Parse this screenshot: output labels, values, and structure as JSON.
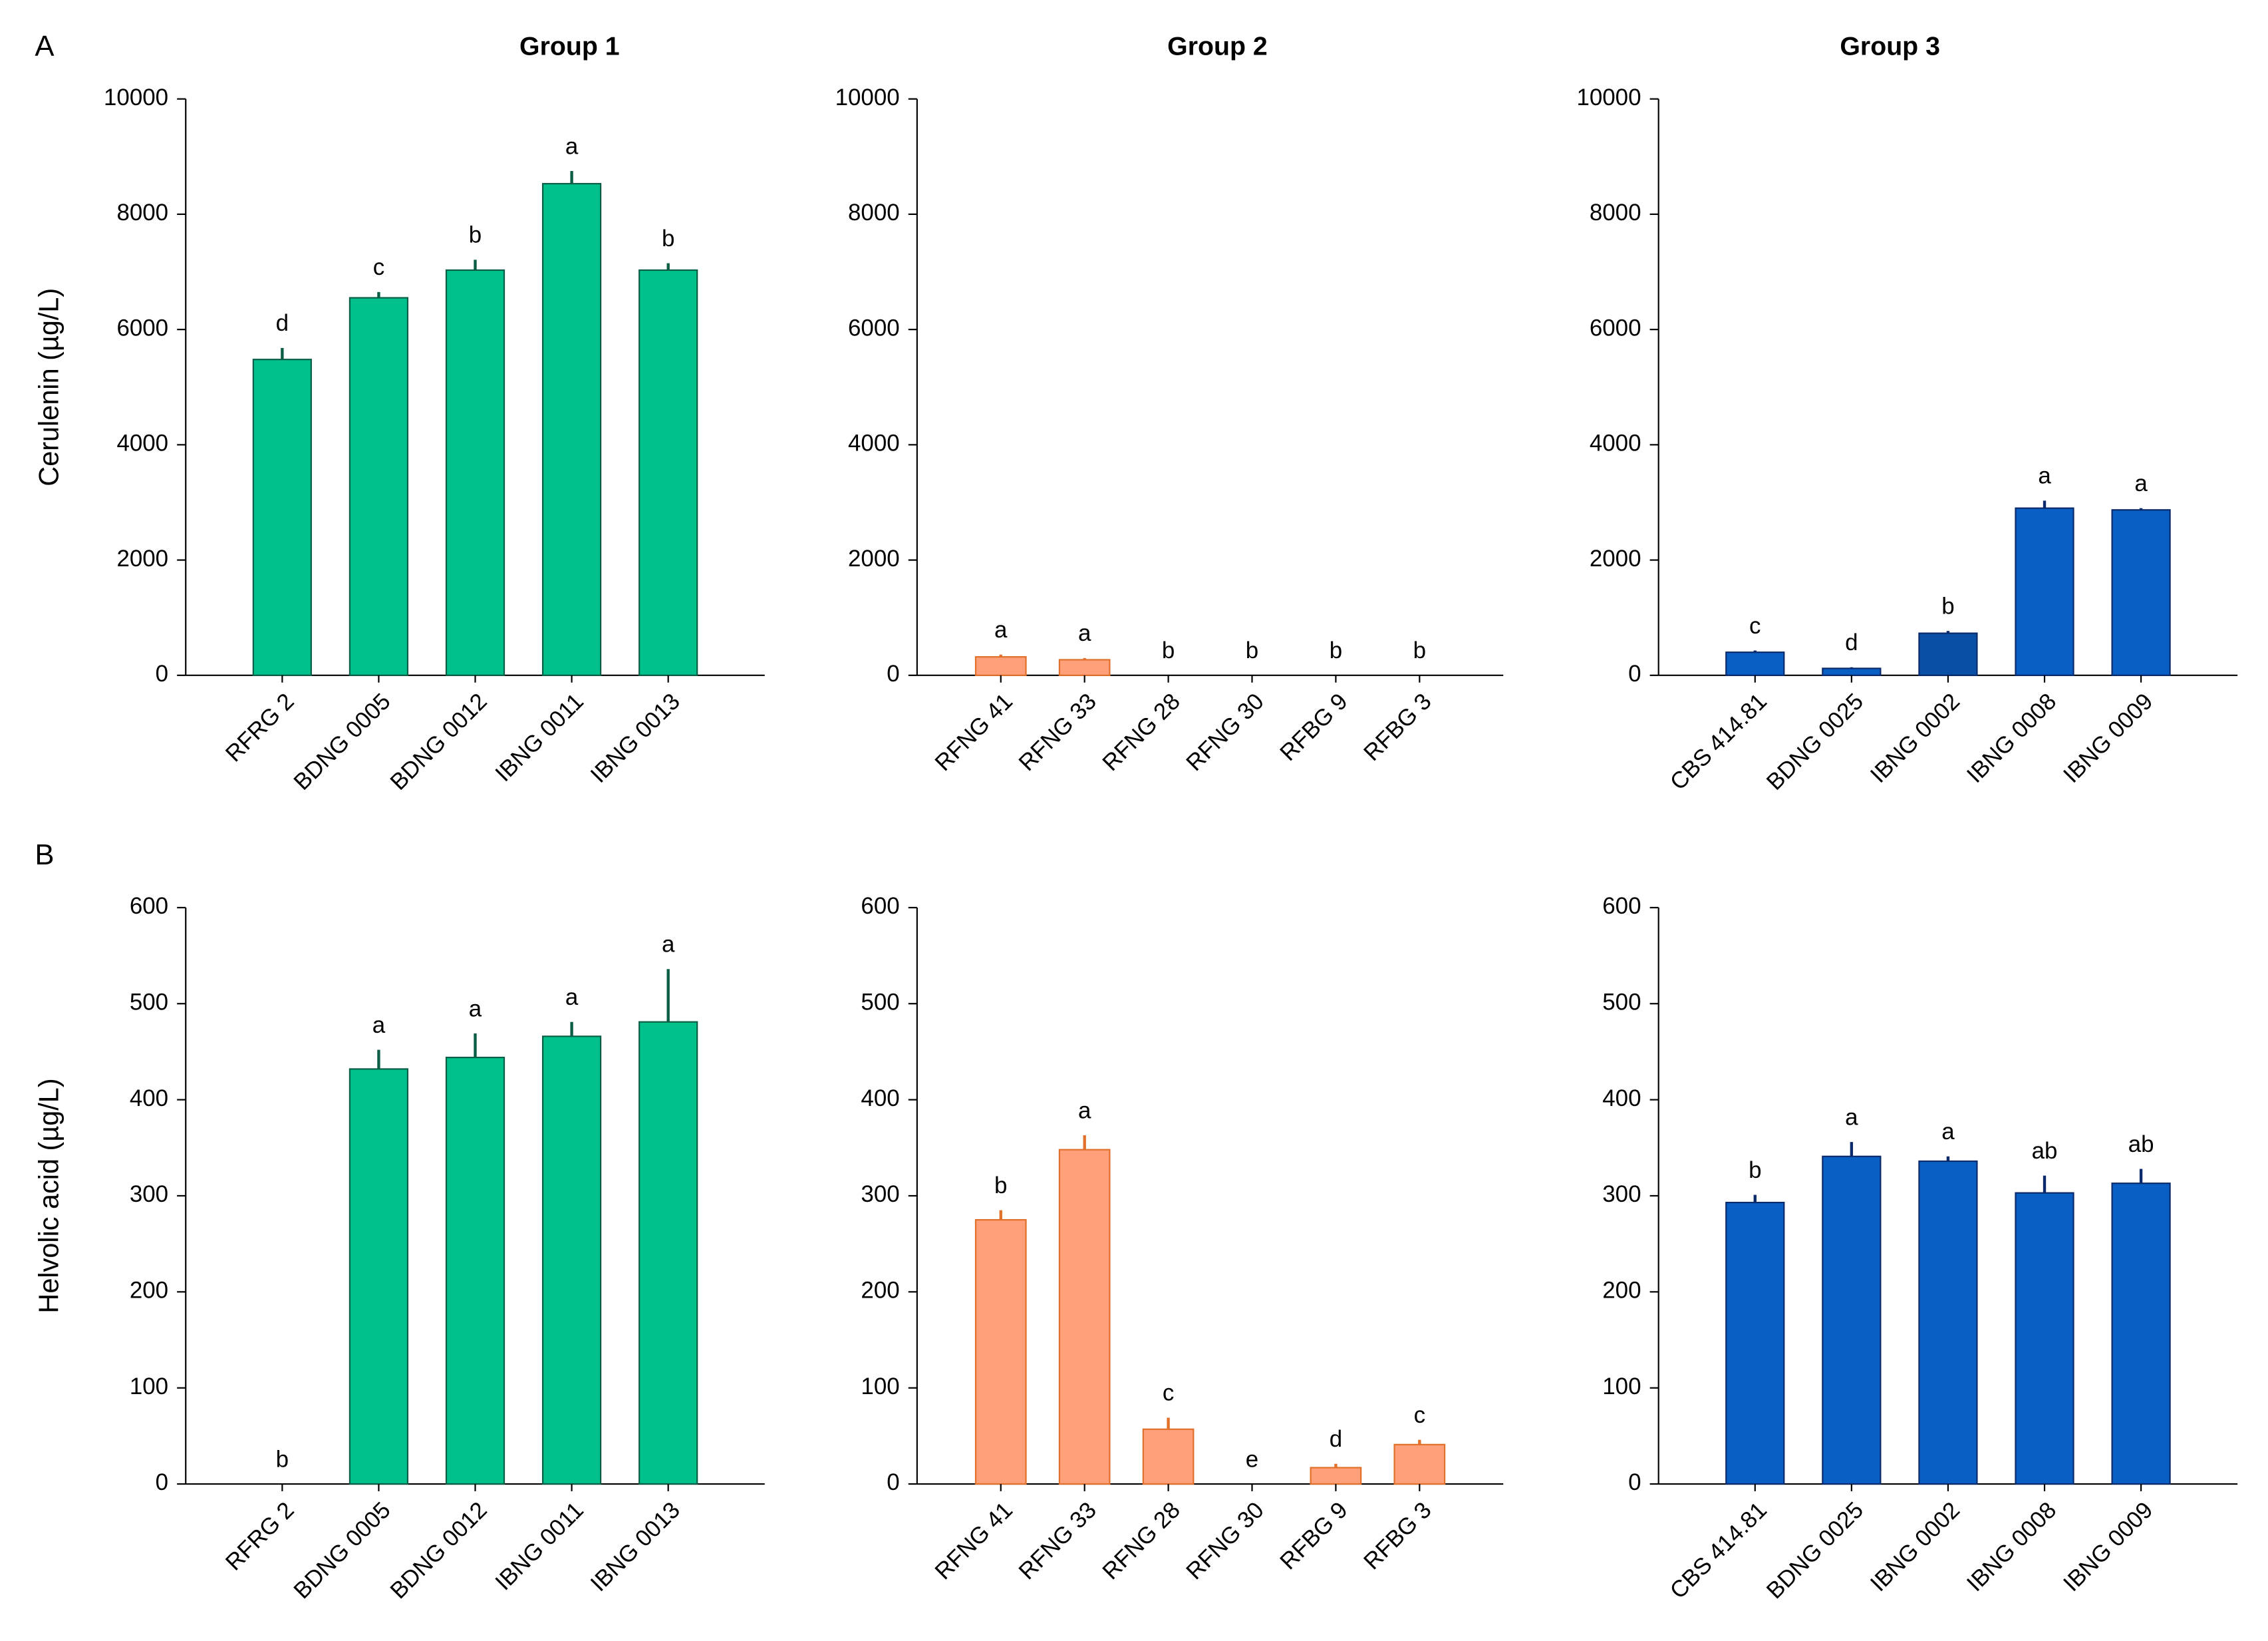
{
  "chart_data": [
    {
      "type": "bar",
      "panel": "A",
      "title": "Group 1",
      "ylabel": "Cerulenin (µg/L)",
      "categories": [
        "RFRG 2",
        "BDNG 0005",
        "BDNG 0012",
        "IBNG 0011",
        "IBNG 0013"
      ],
      "values": [
        5480,
        6550,
        7030,
        8530,
        7030
      ],
      "errors": [
        200,
        100,
        180,
        220,
        120
      ],
      "annotations": [
        "d",
        "c",
        "b",
        "a",
        "b"
      ],
      "color": "#00c08b",
      "edgecolor": "#0b5e45",
      "ylim": [
        0,
        10000
      ],
      "yticks": [
        0,
        2000,
        4000,
        6000,
        8000,
        10000
      ]
    },
    {
      "type": "bar",
      "title": "Group 2",
      "categories": [
        "RFNG 41",
        "RFNG 33",
        "RFNG 28",
        "RFNG 30",
        "RFBG 9",
        "RFBG 3"
      ],
      "values": [
        320,
        270,
        0,
        0,
        0,
        0
      ],
      "errors": [
        40,
        30,
        0,
        0,
        0,
        0
      ],
      "annotations": [
        "a",
        "a",
        "b",
        "b",
        "b",
        "b"
      ],
      "color": "#ffa07a",
      "edgecolor": "#e0702a",
      "ylim": [
        0,
        10000
      ],
      "yticks": [
        0,
        2000,
        4000,
        6000,
        8000,
        10000
      ]
    },
    {
      "type": "bar",
      "title": "Group 3",
      "categories": [
        "CBS 414.81",
        "BDNG 0025",
        "IBNG 0002",
        "IBNG 0008",
        "IBNG 0009"
      ],
      "values": [
        400,
        120,
        730,
        2900,
        2870
      ],
      "errors": [
        30,
        20,
        40,
        130,
        30
      ],
      "annotations": [
        "c",
        "d",
        "b",
        "a",
        "a"
      ],
      "color": "#0a5fc5",
      "colors": [
        "#0a5fc5",
        "#0a5fc5",
        "#0a4fa6",
        "#0a5fc5",
        "#0a5fc5"
      ],
      "edgecolor": "#0a2a6b",
      "ylim": [
        0,
        10000
      ],
      "yticks": [
        0,
        2000,
        4000,
        6000,
        8000,
        10000
      ]
    },
    {
      "type": "bar",
      "panel": "B",
      "ylabel": "Helvolic acid (µg/L)",
      "categories": [
        "RFRG 2",
        "BDNG 0005",
        "BDNG 0012",
        "IBNG 0011",
        "IBNG 0013"
      ],
      "values": [
        0,
        432,
        444,
        466,
        481
      ],
      "errors": [
        0,
        20,
        25,
        15,
        55
      ],
      "annotations": [
        "b",
        "a",
        "a",
        "a",
        "a"
      ],
      "color": "#00c08b",
      "edgecolor": "#0b5e45",
      "ylim": [
        0,
        600
      ],
      "yticks": [
        0,
        100,
        200,
        300,
        400,
        500,
        600
      ]
    },
    {
      "type": "bar",
      "categories": [
        "RFNG 41",
        "RFNG 33",
        "RFNG 28",
        "RFNG 30",
        "RFBG 9",
        "RFBG 3"
      ],
      "values": [
        275,
        348,
        57,
        0,
        17,
        41
      ],
      "errors": [
        10,
        15,
        12,
        0,
        4,
        5
      ],
      "annotations": [
        "b",
        "a",
        "c",
        "e",
        "d",
        "c"
      ],
      "color": "#ffa07a",
      "edgecolor": "#e0702a",
      "ylim": [
        0,
        600
      ],
      "yticks": [
        0,
        100,
        200,
        300,
        400,
        500,
        600
      ]
    },
    {
      "type": "bar",
      "categories": [
        "CBS 414.81",
        "BDNG 0025",
        "IBNG 0002",
        "IBNG 0008",
        "IBNG 0009"
      ],
      "values": [
        293,
        341,
        336,
        303,
        313
      ],
      "errors": [
        8,
        15,
        5,
        18,
        15
      ],
      "annotations": [
        "b",
        "a",
        "a",
        "ab",
        "ab"
      ],
      "color": "#0a5fc5",
      "edgecolor": "#0a2a6b",
      "ylim": [
        0,
        600
      ],
      "yticks": [
        0,
        100,
        200,
        300,
        400,
        500,
        600
      ]
    }
  ]
}
